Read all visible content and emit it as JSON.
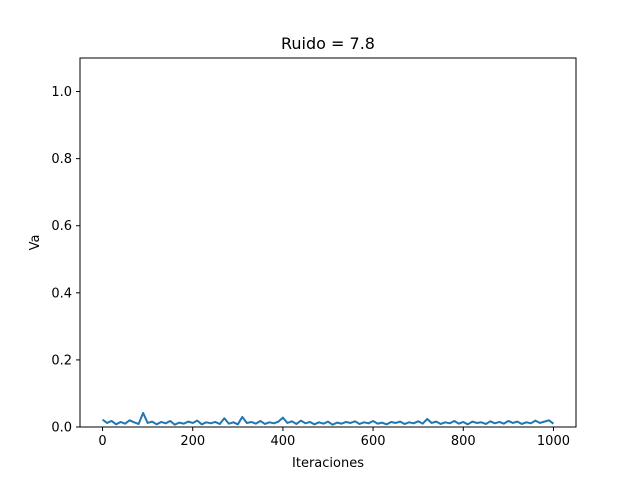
{
  "chart_data": {
    "type": "line",
    "title": "Ruido = 7.8",
    "xlabel": "Iteraciones",
    "ylabel": "Va",
    "xlim": [
      -50,
      1050
    ],
    "ylim": [
      0.0,
      1.1
    ],
    "xticks": [
      0,
      200,
      400,
      600,
      800,
      1000
    ],
    "xtick_labels": [
      "0",
      "200",
      "400",
      "600",
      "800",
      "1000"
    ],
    "yticks": [
      0.0,
      0.2,
      0.4,
      0.6,
      0.8,
      1.0
    ],
    "ytick_labels": [
      "0.0",
      "0.2",
      "0.4",
      "0.6",
      "0.8",
      "1.0"
    ],
    "grid": false,
    "legend": "none",
    "colors": {
      "line": "#1f77b4",
      "axes": "#000000",
      "background": "#ffffff"
    },
    "series": [
      {
        "x": [
          0,
          10,
          20,
          30,
          40,
          50,
          60,
          70,
          80,
          90,
          100,
          110,
          120,
          130,
          140,
          150,
          160,
          170,
          180,
          190,
          200,
          210,
          220,
          230,
          240,
          250,
          260,
          270,
          280,
          290,
          300,
          310,
          320,
          330,
          340,
          350,
          360,
          370,
          380,
          390,
          400,
          410,
          420,
          430,
          440,
          450,
          460,
          470,
          480,
          490,
          500,
          510,
          520,
          530,
          540,
          550,
          560,
          570,
          580,
          590,
          600,
          610,
          620,
          630,
          640,
          650,
          660,
          670,
          680,
          690,
          700,
          710,
          720,
          730,
          740,
          750,
          760,
          770,
          780,
          790,
          800,
          810,
          820,
          830,
          840,
          850,
          860,
          870,
          880,
          890,
          900,
          910,
          920,
          930,
          940,
          950,
          960,
          970,
          980,
          990,
          1000
        ],
        "y": [
          0.022,
          0.012,
          0.018,
          0.008,
          0.015,
          0.01,
          0.02,
          0.014,
          0.009,
          0.042,
          0.012,
          0.016,
          0.008,
          0.015,
          0.011,
          0.018,
          0.007,
          0.013,
          0.01,
          0.016,
          0.012,
          0.019,
          0.008,
          0.014,
          0.011,
          0.015,
          0.009,
          0.026,
          0.01,
          0.014,
          0.008,
          0.03,
          0.012,
          0.015,
          0.01,
          0.018,
          0.009,
          0.014,
          0.011,
          0.016,
          0.028,
          0.012,
          0.017,
          0.009,
          0.019,
          0.011,
          0.015,
          0.008,
          0.014,
          0.01,
          0.016,
          0.007,
          0.013,
          0.01,
          0.015,
          0.012,
          0.017,
          0.009,
          0.014,
          0.011,
          0.018,
          0.01,
          0.013,
          0.008,
          0.015,
          0.012,
          0.016,
          0.009,
          0.014,
          0.011,
          0.017,
          0.01,
          0.024,
          0.012,
          0.016,
          0.009,
          0.014,
          0.011,
          0.018,
          0.01,
          0.015,
          0.008,
          0.016,
          0.012,
          0.014,
          0.009,
          0.017,
          0.011,
          0.015,
          0.01,
          0.018,
          0.012,
          0.016,
          0.009,
          0.014,
          0.011,
          0.019,
          0.012,
          0.016,
          0.02,
          0.01
        ]
      }
    ]
  }
}
